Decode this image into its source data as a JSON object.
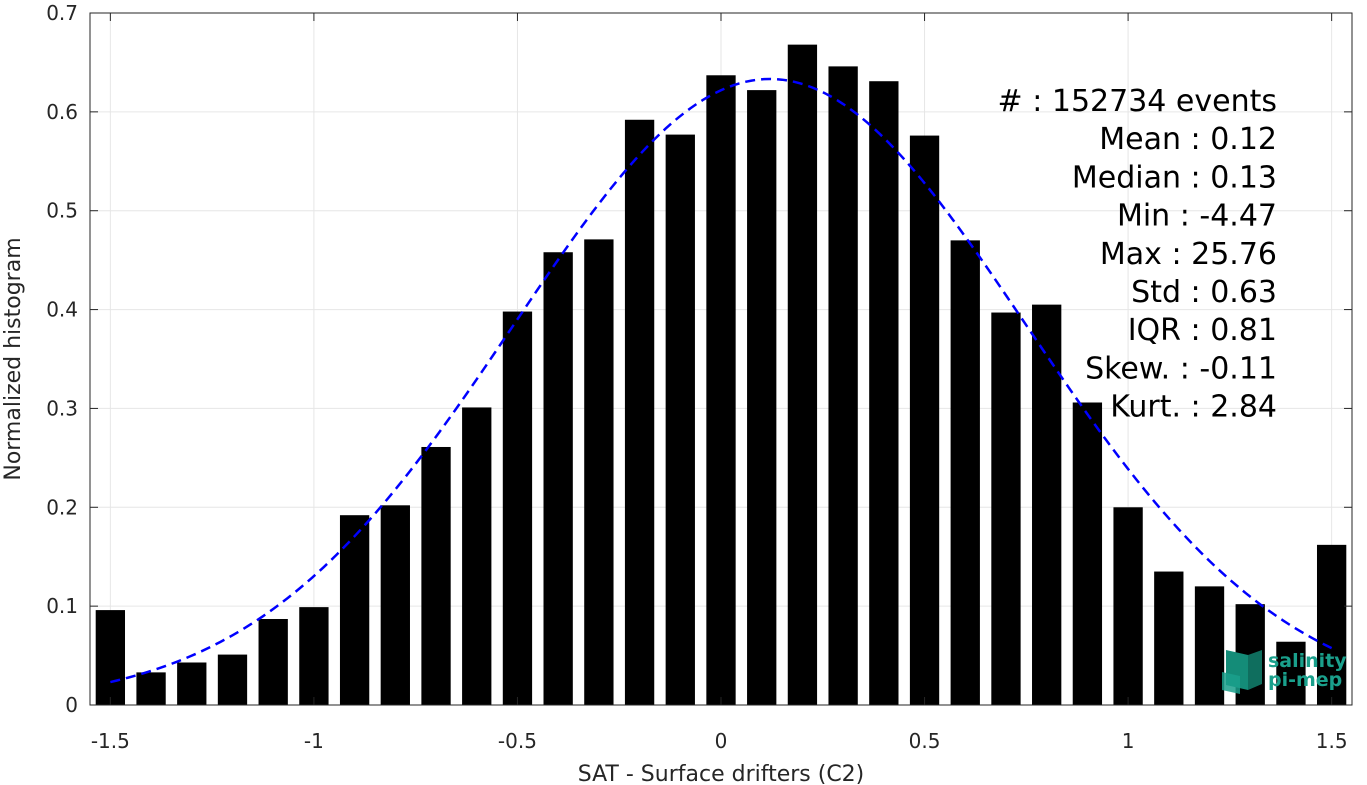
{
  "chart_data": {
    "type": "bar",
    "xlabel": "SAT - Surface drifters (C2)",
    "ylabel": "Normalized histogram",
    "xlim": [
      -1.55,
      1.55
    ],
    "ylim": [
      0,
      0.7
    ],
    "xticks": [
      "-1.5",
      "-1",
      "-0.5",
      "0",
      "0.5",
      "1",
      "1.5"
    ],
    "yticks": [
      "0",
      "0.1",
      "0.2",
      "0.3",
      "0.4",
      "0.5",
      "0.6",
      "0.7"
    ],
    "grid": true,
    "bar_color": "#000000",
    "fit_color": "#0000ff",
    "bins": [
      -1.5,
      -1.4,
      -1.3,
      -1.2,
      -1.1,
      -1.0,
      -0.9,
      -0.8,
      -0.7,
      -0.6,
      -0.5,
      -0.4,
      -0.3,
      -0.2,
      -0.1,
      0.0,
      0.1,
      0.2,
      0.3,
      0.4,
      0.5,
      0.6,
      0.7,
      0.8,
      0.9,
      1.0,
      1.1,
      1.2,
      1.3,
      1.4,
      1.5
    ],
    "values": [
      0.096,
      0.033,
      0.043,
      0.051,
      0.087,
      0.099,
      0.192,
      0.202,
      0.261,
      0.301,
      0.398,
      0.458,
      0.471,
      0.592,
      0.577,
      0.637,
      0.622,
      0.668,
      0.646,
      0.631,
      0.576,
      0.47,
      0.397,
      0.405,
      0.306,
      0.2,
      0.135,
      0.12,
      0.102,
      0.064,
      0.162
    ],
    "fit": {
      "type": "gaussian",
      "mean": 0.12,
      "std": 0.63,
      "style": "dashed"
    },
    "stats": [
      {
        "label": "#   : 152734 events"
      },
      {
        "label": "Mean : 0.12"
      },
      {
        "label": "Median : 0.13"
      },
      {
        "label": "Min : -4.47"
      },
      {
        "label": "Max : 25.76"
      },
      {
        "label": "Std : 0.63"
      },
      {
        "label": "IQR : 0.81"
      },
      {
        "label": "Skew. : -0.11"
      },
      {
        "label": "Kurt. : 2.84"
      }
    ]
  },
  "logo": {
    "line1": "salinity",
    "line2": "pi-mep",
    "color": "#1aa08c"
  }
}
